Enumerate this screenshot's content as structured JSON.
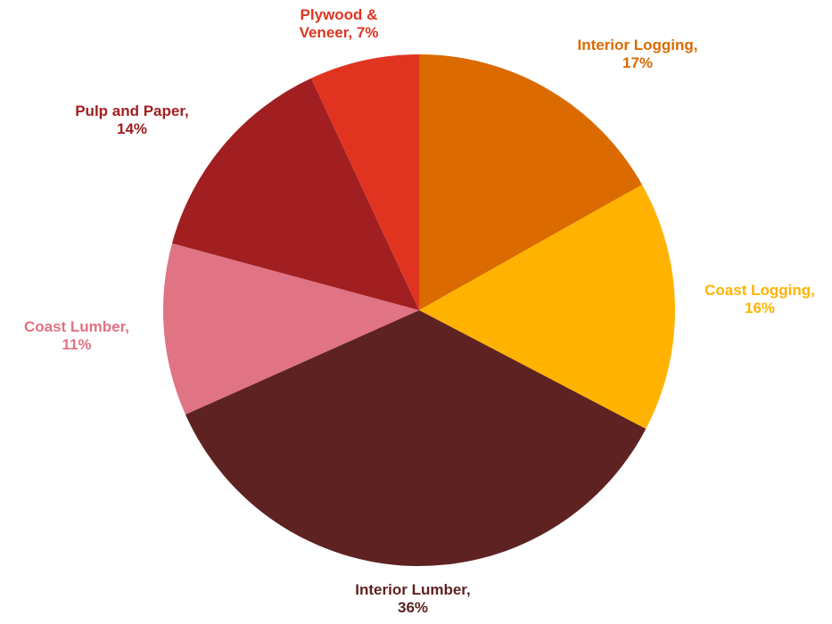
{
  "chart_data": {
    "type": "pie",
    "start_angle": "12 o'clock",
    "direction": "clockwise",
    "slices": [
      {
        "category": "Interior Logging",
        "label_lines": [
          "Interior Logging,",
          "17%"
        ],
        "value": 17,
        "color": "#DB6A00"
      },
      {
        "category": "Coast Logging",
        "label_lines": [
          "Coast Logging,",
          "16%"
        ],
        "value": 16,
        "color": "#FFB300"
      },
      {
        "category": "Interior Lumber",
        "label_lines": [
          "Interior Lumber,",
          "36%"
        ],
        "value": 36,
        "color": "#5E2222"
      },
      {
        "category": "Coast Lumber",
        "label_lines": [
          "Coast Lumber,",
          "11%"
        ],
        "value": 11,
        "color": "#E07384"
      },
      {
        "category": "Pulp and Paper",
        "label_lines": [
          "Pulp and Paper,",
          "14%"
        ],
        "value": 14,
        "color": "#A11F21"
      },
      {
        "category": "Plywood & Veneer",
        "label_lines": [
          "Plywood &",
          "Veneer, 7%"
        ],
        "value": 7,
        "color": "#E03421"
      }
    ],
    "label_colors": {
      "Interior Logging": "#DB6A00",
      "Coast Logging": "#FFB300",
      "Interior Lumber": "#5E2222",
      "Coast Lumber": "#E07384",
      "Pulp and Paper": "#A11F21",
      "Plywood & Veneer": "#E03421"
    },
    "legend": "none",
    "data_labels": "outside"
  }
}
